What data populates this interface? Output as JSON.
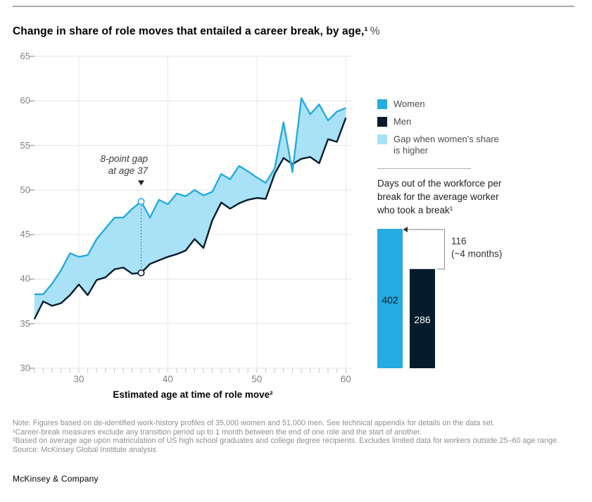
{
  "header": {
    "title": "Change in share of role moves that entailed a career break, by age,¹",
    "unit": "%"
  },
  "colors": {
    "women": "#25aae1",
    "men": "#051c2c",
    "gap_fill": "#a9e2f7",
    "grid": "#e4e4e4",
    "tick_dash": "#9e9e9e",
    "minor_tick": "#c6c6c6",
    "axis_text": "#828282"
  },
  "legend": [
    {
      "label": "Women",
      "color": "#25aae1"
    },
    {
      "label": "Men",
      "color": "#051c2c"
    },
    {
      "label": "Gap when women's share is higher",
      "color": "#a9e2f7"
    }
  ],
  "chart_data": [
    {
      "type": "line",
      "title": "Change in share of role moves that entailed a career break, by age, %",
      "xlabel": "Estimated age at time of role move²",
      "ylabel": "%",
      "xlim": [
        25,
        60
      ],
      "ylim": [
        30,
        65
      ],
      "xticks": [
        30,
        40,
        50,
        60
      ],
      "yticks": [
        65,
        60,
        55,
        50,
        45,
        40,
        35,
        30
      ],
      "grid": true,
      "legend_position": "right",
      "x": [
        25,
        26,
        27,
        28,
        29,
        30,
        31,
        32,
        33,
        34,
        35,
        36,
        37,
        38,
        39,
        40,
        41,
        42,
        43,
        44,
        45,
        46,
        47,
        48,
        49,
        50,
        51,
        52,
        53,
        54,
        55,
        56,
        57,
        58,
        59,
        60
      ],
      "series": [
        {
          "name": "Women",
          "values": [
            38.3,
            38.3,
            39.5,
            41.0,
            42.9,
            42.5,
            42.7,
            44.5,
            45.7,
            46.9,
            46.9,
            47.9,
            48.7,
            46.9,
            48.9,
            48.4,
            49.6,
            49.3,
            50.0,
            49.4,
            49.8,
            51.8,
            51.2,
            52.7,
            52.1,
            51.4,
            50.8,
            52.4,
            57.6,
            52.0,
            60.3,
            58.5,
            59.6,
            57.8,
            58.8,
            59.2
          ]
        },
        {
          "name": "Men",
          "values": [
            35.5,
            37.5,
            37.0,
            37.3,
            38.2,
            39.4,
            38.2,
            39.9,
            40.2,
            41.1,
            41.3,
            40.6,
            40.7,
            41.7,
            42.1,
            42.5,
            42.8,
            43.2,
            44.5,
            43.5,
            46.6,
            48.6,
            47.9,
            48.5,
            48.9,
            49.1,
            49.0,
            51.8,
            53.6,
            52.9,
            53.5,
            53.7,
            53.0,
            55.7,
            55.4,
            58.1
          ]
        }
      ],
      "gap_fill_label": "Gap when women's share is higher",
      "annotation": {
        "line1": "8-point gap",
        "line2": "at age 37",
        "age": 37,
        "women_value": 48.7,
        "men_value": 40.7
      }
    },
    {
      "type": "bar",
      "title": "Days out of the workforce per break for the average worker who took a break¹",
      "categories": [
        "Women",
        "Men"
      ],
      "values": [
        402,
        286
      ],
      "difference": {
        "line1": "116",
        "line2": "(~4 months)"
      }
    }
  ],
  "notes": [
    "Note: Figures based on de-identified work-history profiles of 35,000 women and 51,000 men. See technical appendix for details on the data set.",
    "¹Career-break measures exclude any transition period up to 1 month between the end of one role and the start of another.",
    "²Based on average age upon matriculation of US high school graduates and college degree recipients. Excludes limited data for workers outside 25–60 age range.",
    "Source: McKinsey Global Institute analysis"
  ],
  "footer": {
    "brand": "McKinsey & Company"
  }
}
